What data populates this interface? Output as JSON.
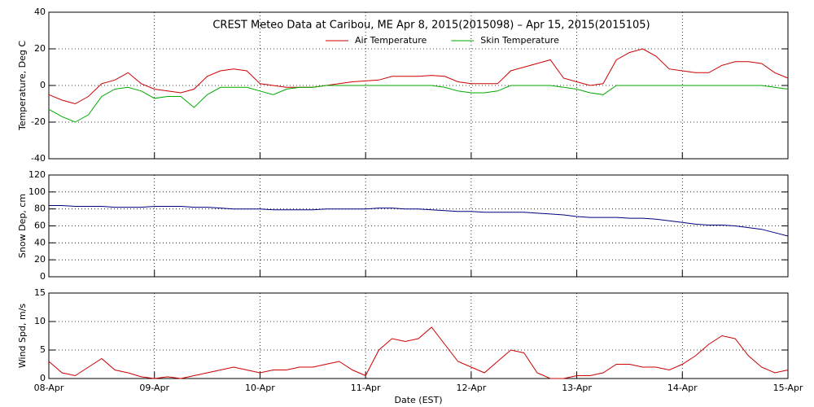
{
  "chart_data": [
    {
      "type": "line",
      "title": "CREST Meteo Data at Caribou, ME   Apr  8, 2015(2015098) – Apr 15, 2015(2015105)",
      "y_label": "Temperature, Deg C",
      "legend": "top",
      "grid": true,
      "x": [
        0,
        3,
        6,
        9,
        12,
        15,
        18,
        21,
        24,
        27,
        30,
        33,
        36,
        39,
        42,
        45,
        48,
        51,
        54,
        57,
        60,
        63,
        66,
        69,
        72,
        75,
        78,
        81,
        84,
        87,
        90,
        93,
        96,
        99,
        102,
        105,
        108,
        111,
        114,
        117,
        120,
        123,
        126,
        129,
        132,
        135,
        138,
        141,
        144,
        147,
        150,
        153,
        156,
        159,
        162,
        165,
        168
      ],
      "xlim": [
        0,
        168
      ],
      "xticks": [
        0,
        24,
        48,
        72,
        96,
        120,
        144,
        168
      ],
      "ylim": [
        -40,
        40
      ],
      "yticks": [
        -40,
        -20,
        0,
        20,
        40
      ],
      "series": [
        {
          "name": "Air Temperature",
          "color": "#cc0000",
          "values": [
            -5,
            -8,
            -10,
            -6,
            1,
            3,
            7,
            1,
            -2,
            -3,
            -4,
            -2,
            5,
            8,
            9,
            8,
            1,
            0,
            -1,
            -1,
            -1,
            0,
            1,
            2,
            2.5,
            3,
            5,
            5,
            5,
            5.5,
            5,
            2,
            1,
            1,
            1,
            8,
            10,
            12,
            14,
            4,
            2,
            0,
            1,
            14,
            18,
            20,
            16,
            9,
            8,
            7,
            7,
            11,
            13,
            13,
            12,
            7,
            4
          ]
        },
        {
          "name": "Skin Temperature",
          "color": "#00aa00",
          "values": [
            -13,
            -17,
            -20,
            -16,
            -6,
            -2,
            -1,
            -3,
            -7,
            -6,
            -6,
            -12,
            -5,
            -1,
            -1,
            -1,
            -3,
            -5,
            -2,
            -1,
            -1,
            0,
            0,
            0,
            0,
            0,
            0,
            0,
            0,
            0,
            -1,
            -3,
            -4,
            -4,
            -3,
            0,
            0,
            0,
            0,
            -1,
            -2,
            -4,
            -5,
            0,
            0,
            0,
            0,
            0,
            0,
            0,
            0,
            0,
            0,
            0,
            0,
            -1,
            -2
          ]
        }
      ]
    },
    {
      "type": "line",
      "y_label": "Snow Dep, cm",
      "grid": true,
      "x": [
        0,
        3,
        6,
        9,
        12,
        15,
        18,
        21,
        24,
        27,
        30,
        33,
        36,
        39,
        42,
        45,
        48,
        51,
        54,
        57,
        60,
        63,
        66,
        69,
        72,
        75,
        78,
        81,
        84,
        87,
        90,
        93,
        96,
        99,
        102,
        105,
        108,
        111,
        114,
        117,
        120,
        123,
        126,
        129,
        132,
        135,
        138,
        141,
        144,
        147,
        150,
        153,
        156,
        159,
        162,
        165,
        168
      ],
      "xlim": [
        0,
        168
      ],
      "xticks": [
        0,
        24,
        48,
        72,
        96,
        120,
        144,
        168
      ],
      "ylim": [
        0,
        120
      ],
      "yticks": [
        0,
        20,
        40,
        60,
        80,
        100,
        120
      ],
      "series": [
        {
          "color": "#000080",
          "values": [
            84,
            84,
            83,
            83,
            83,
            82,
            82,
            82,
            83,
            83,
            83,
            82,
            82,
            81,
            80,
            80,
            80,
            79,
            79,
            79,
            79,
            80,
            80,
            80,
            80,
            81,
            81,
            80,
            80,
            79,
            78,
            77,
            77,
            76,
            76,
            76,
            76,
            75,
            74,
            73,
            71,
            70,
            70,
            70,
            69,
            69,
            68,
            66,
            64,
            62,
            61,
            61,
            60,
            58,
            56,
            52,
            48
          ]
        }
      ]
    },
    {
      "type": "line",
      "y_label": "Wind Spd, m/s",
      "x_label": "Date (EST)",
      "grid": true,
      "x": [
        0,
        3,
        6,
        9,
        12,
        15,
        18,
        21,
        24,
        27,
        30,
        33,
        36,
        39,
        42,
        45,
        48,
        51,
        54,
        57,
        60,
        63,
        66,
        69,
        72,
        75,
        78,
        81,
        84,
        87,
        90,
        93,
        96,
        99,
        102,
        105,
        108,
        111,
        114,
        117,
        120,
        123,
        126,
        129,
        132,
        135,
        138,
        141,
        144,
        147,
        150,
        153,
        156,
        159,
        162,
        165,
        168
      ],
      "xlim": [
        0,
        168
      ],
      "xticks": [
        {
          "value": 0,
          "label": "08-Apr"
        },
        {
          "value": 24,
          "label": "09-Apr"
        },
        {
          "value": 48,
          "label": "10-Apr"
        },
        {
          "value": 72,
          "label": "11-Apr"
        },
        {
          "value": 96,
          "label": "12-Apr"
        },
        {
          "value": 120,
          "label": "13-Apr"
        },
        {
          "value": 144,
          "label": "14-Apr"
        },
        {
          "value": 168,
          "label": "15-Apr"
        }
      ],
      "ylim": [
        0,
        15
      ],
      "yticks": [
        0,
        5,
        10,
        15
      ],
      "series": [
        {
          "color": "#cc0000",
          "values": [
            3,
            1,
            0.5,
            2,
            3.5,
            1.5,
            1,
            0.3,
            0,
            0.3,
            0,
            0.5,
            1,
            1.5,
            2,
            1.5,
            1,
            1.5,
            1.5,
            2,
            2,
            2.5,
            3,
            1.5,
            0.5,
            5,
            7,
            6.5,
            7,
            9,
            6,
            3,
            2,
            1,
            3,
            5,
            4.5,
            1,
            0,
            0,
            0.5,
            0.5,
            1,
            2.5,
            2.5,
            2,
            2,
            1.5,
            2.5,
            4,
            6,
            7.5,
            7,
            4,
            2,
            1,
            1.5
          ]
        }
      ]
    }
  ]
}
